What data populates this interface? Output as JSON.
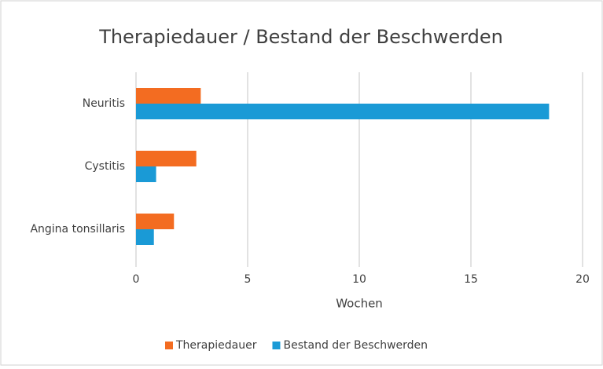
{
  "chart_data": {
    "type": "bar",
    "orientation": "horizontal",
    "title": "Therapiedauer / Bestand der Beschwerden",
    "x_label": "Wochen",
    "categories": [
      "Neuritis",
      "Cystitis",
      "Angina tonsillaris"
    ],
    "series": [
      {
        "name": "Therapiedauer",
        "color": "#f36c21",
        "values": [
          2.9,
          2.7,
          1.7
        ]
      },
      {
        "name": "Bestand der Beschwerden",
        "color": "#1a9ad6",
        "values": [
          18.5,
          0.9,
          0.8
        ]
      }
    ],
    "xlim": [
      0,
      20
    ],
    "xticks": [
      0,
      5,
      10,
      15,
      20
    ],
    "grid": true,
    "legend": "bottom"
  }
}
